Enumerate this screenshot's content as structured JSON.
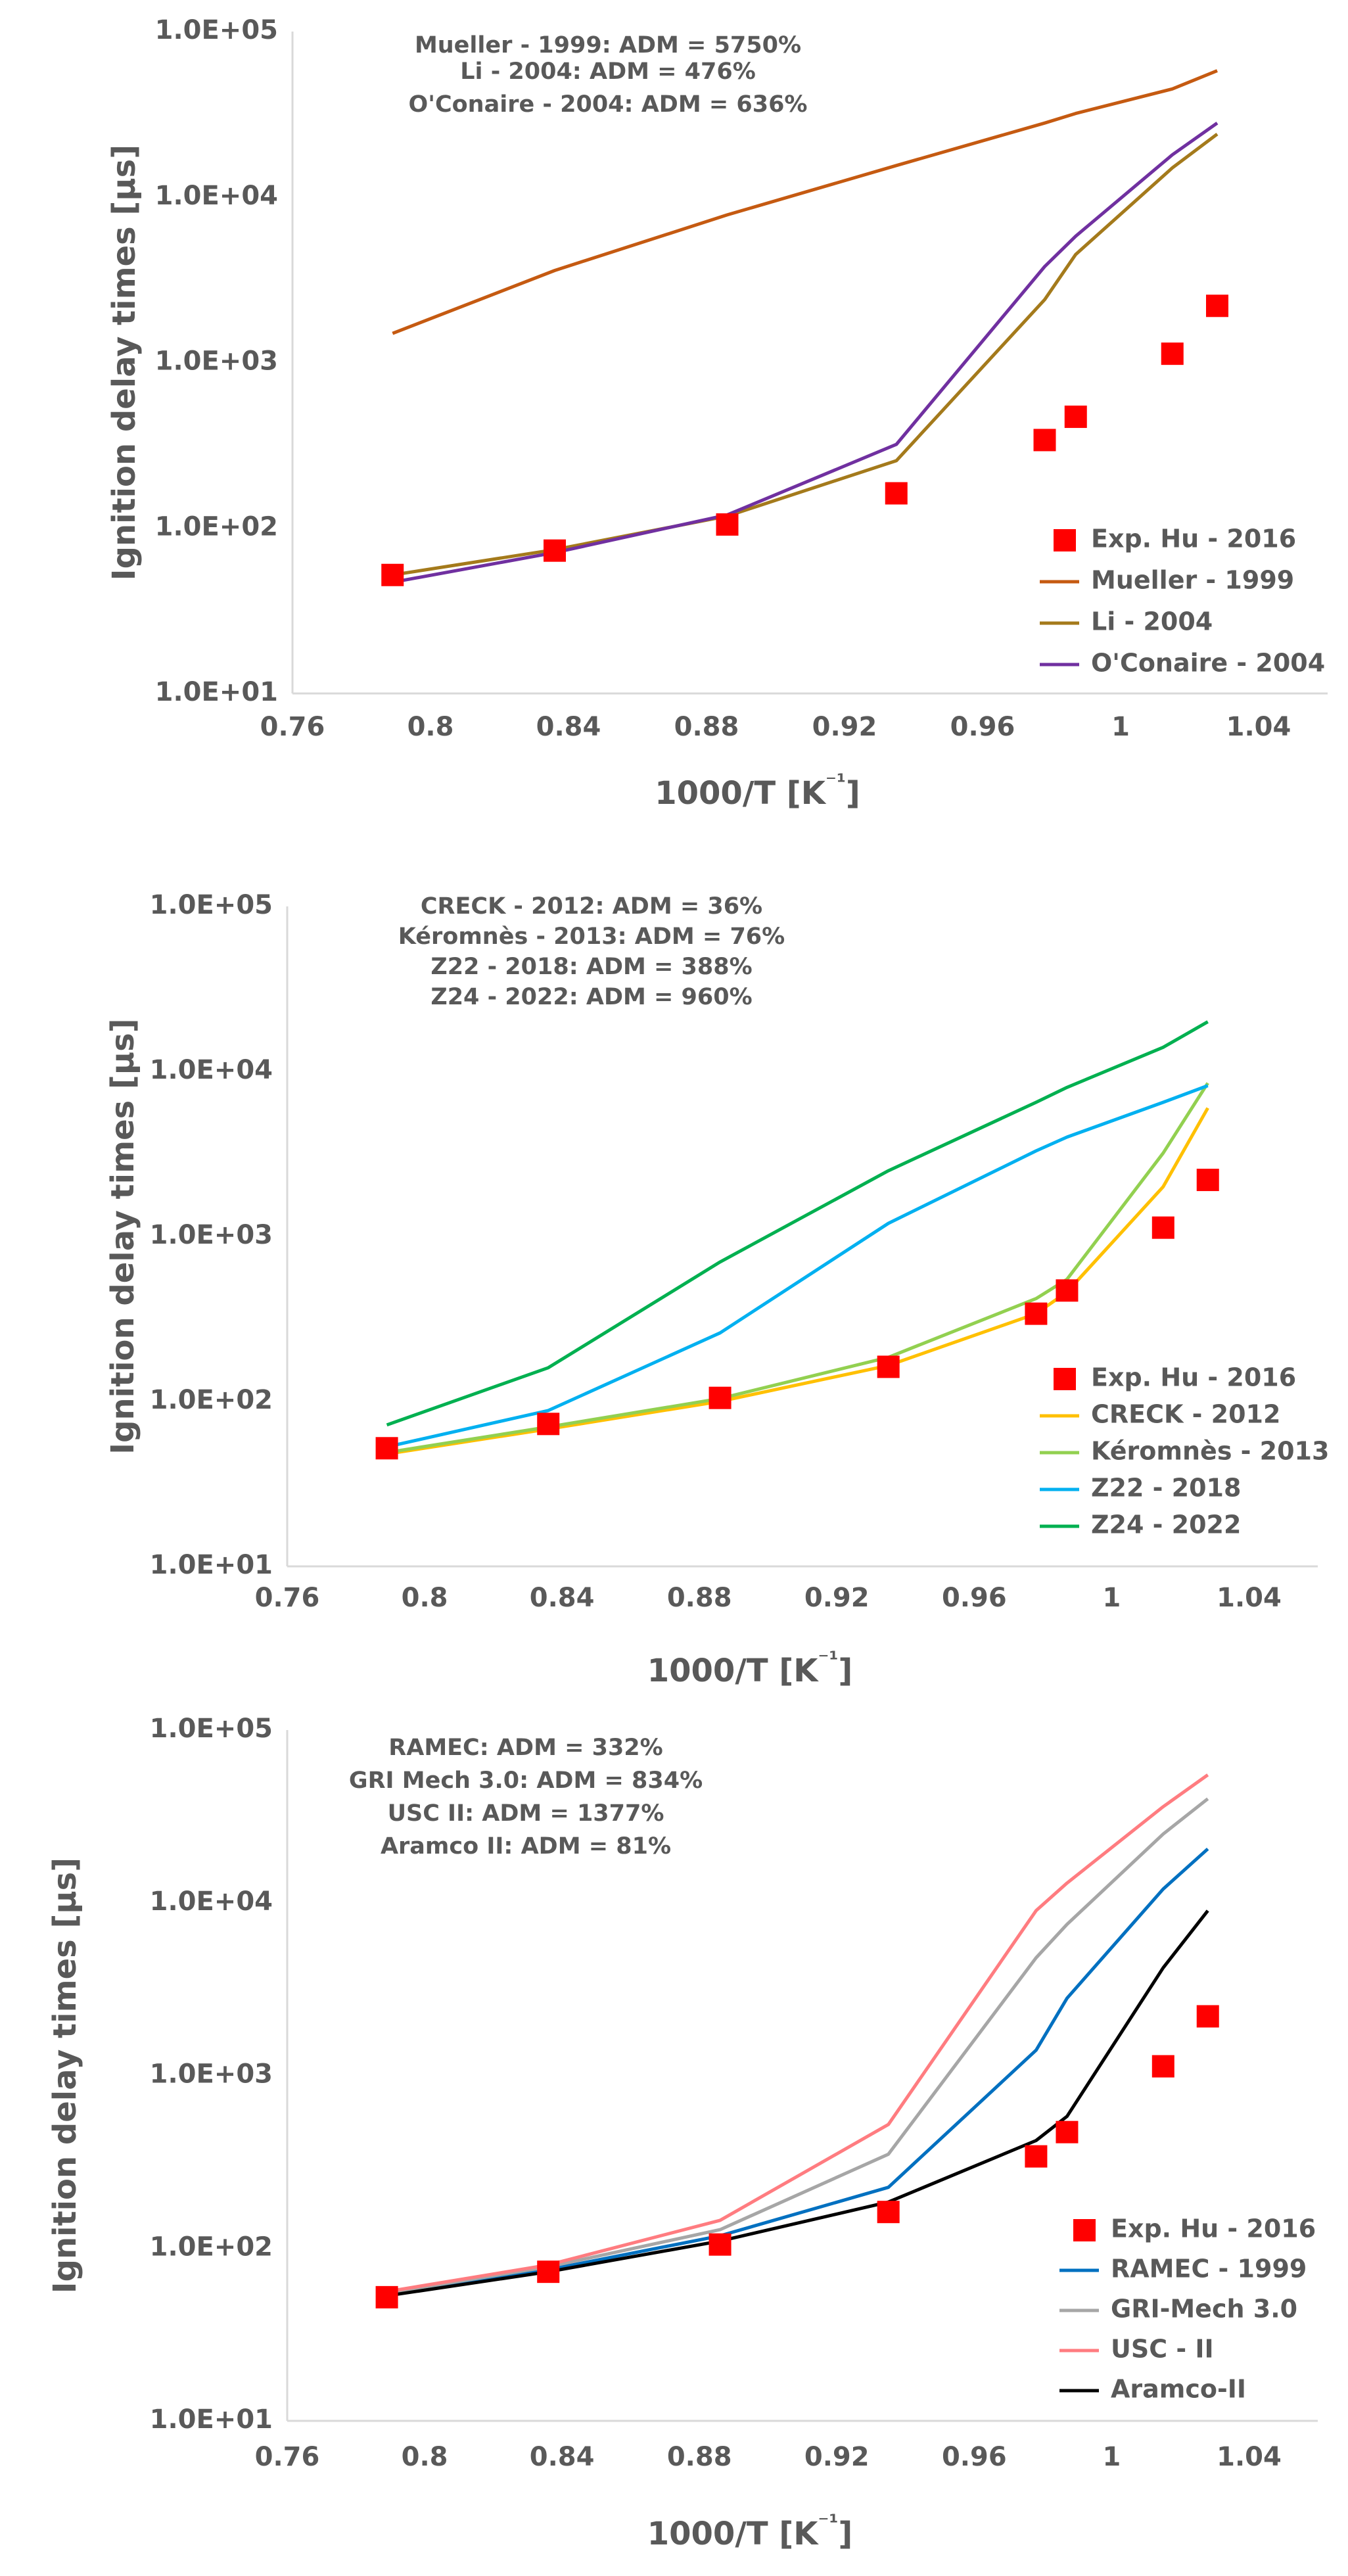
{
  "chart_data": [
    {
      "type": "line",
      "xlabel": "1000/T [K⁻¹]",
      "ylabel": "Ignition delay times [µs]",
      "xlim": [
        0.76,
        1.06
      ],
      "ylim": [
        10,
        100000
      ],
      "y_scale": "log",
      "grid": false,
      "legend_position": "bottom-right",
      "xticks": [
        "0.76",
        "0.8",
        "0.84",
        "0.88",
        "0.92",
        "0.96",
        "1",
        "1.04"
      ],
      "yticks": [
        "1.0E+01",
        "1.0E+02",
        "1.0E+03",
        "1.0E+04",
        "1.0E+05"
      ],
      "annotations": [
        "Mueller - 1999: ADM = 5750%",
        "Li - 2004: ADM = 476%",
        "O'Conaire - 2004: ADM = 636%"
      ],
      "x": [
        0.789,
        0.836,
        0.886,
        0.935,
        0.978,
        0.987,
        1.015,
        1.028
      ],
      "series": [
        {
          "name": "Mueller - 1999",
          "color": "#c55a11",
          "values": [
            1500,
            3600,
            7800,
            15500,
            28000,
            32000,
            45000,
            58000
          ]
        },
        {
          "name": "Li - 2004",
          "color": "#a47a1b",
          "values": [
            52,
            74,
            118,
            255,
            2400,
            4500,
            15000,
            24000
          ]
        },
        {
          "name": "O'Conaire - 2004",
          "color": "#7030a0",
          "values": [
            47,
            71,
            120,
            320,
            3800,
            5800,
            18000,
            28000
          ]
        }
      ],
      "scatter": {
        "name": "Exp. Hu - 2016",
        "color": "#ff0000",
        "x": [
          0.789,
          0.836,
          0.886,
          0.935,
          0.978,
          0.987,
          1.015,
          1.028
        ],
        "values": [
          52,
          73,
          105,
          162,
          340,
          470,
          1130,
          2200
        ]
      }
    },
    {
      "type": "line",
      "xlabel": "1000/T [K⁻¹]",
      "ylabel": "Ignition delay times [µs]",
      "xlim": [
        0.76,
        1.06
      ],
      "ylim": [
        10,
        100000
      ],
      "y_scale": "log",
      "grid": false,
      "legend_position": "bottom-right",
      "xticks": [
        "0.76",
        "0.8",
        "0.84",
        "0.88",
        "0.92",
        "0.96",
        "1",
        "1.04"
      ],
      "yticks": [
        "1.0E+01",
        "1.0E+02",
        "1.0E+03",
        "1.0E+04",
        "1.0E+05"
      ],
      "annotations": [
        "CRECK - 2012: ADM = 36%",
        "Kéromnès - 2013: ADM = 76%",
        "Z22 - 2018: ADM = 388%",
        "Z24 - 2022: ADM = 960%"
      ],
      "x": [
        0.789,
        0.836,
        0.886,
        0.935,
        0.978,
        0.987,
        1.015,
        1.028
      ],
      "series": [
        {
          "name": "CRECK - 2012",
          "color": "#ffc000",
          "values": [
            48,
            68,
            100,
            165,
            340,
            460,
            2000,
            6000
          ]
        },
        {
          "name": "Kéromnès - 2013",
          "color": "#92d050",
          "values": [
            49,
            70,
            104,
            185,
            420,
            550,
            3200,
            8500
          ]
        },
        {
          "name": "Z22 - 2018",
          "color": "#00b0f0",
          "values": [
            53,
            88,
            260,
            1200,
            3300,
            4000,
            6500,
            8200
          ]
        },
        {
          "name": "Z24 - 2022",
          "color": "#00b050",
          "values": [
            72,
            160,
            700,
            2500,
            6500,
            8000,
            14000,
            20000
          ]
        }
      ],
      "scatter": {
        "name": "Exp. Hu - 2016",
        "color": "#ff0000",
        "x": [
          0.789,
          0.836,
          0.886,
          0.935,
          0.978,
          0.987,
          1.015,
          1.028
        ],
        "values": [
          52,
          73,
          105,
          162,
          340,
          470,
          1130,
          2200
        ]
      }
    },
    {
      "type": "line",
      "xlabel": "1000/T [K⁻¹]",
      "ylabel": "Ignition delay times [µs]",
      "xlim": [
        0.76,
        1.06
      ],
      "ylim": [
        10,
        100000
      ],
      "y_scale": "log",
      "grid": false,
      "legend_position": "bottom-right",
      "xticks": [
        "0.76",
        "0.8",
        "0.84",
        "0.88",
        "0.92",
        "0.96",
        "1",
        "1.04"
      ],
      "yticks": [
        "1.0E+01",
        "1.0E+02",
        "1.0E+03",
        "1.0E+04",
        "1.0E+05"
      ],
      "annotations": [
        "RAMEC: ADM = 332%",
        "GRI Mech 3.0: ADM = 834%",
        "USC II: ADM = 1377%",
        "Aramco II: ADM = 81%"
      ],
      "x": [
        0.789,
        0.836,
        0.886,
        0.935,
        0.978,
        0.987,
        1.015,
        1.028
      ],
      "series": [
        {
          "name": "RAMEC - 1999",
          "color": "#0070c0",
          "values": [
            54,
            75,
            118,
            225,
            1400,
            2800,
            12000,
            20500
          ]
        },
        {
          "name": "GRI-Mech 3.0",
          "color": "#a6a6a6",
          "values": [
            55,
            78,
            128,
            350,
            4800,
            7500,
            25000,
            40000
          ]
        },
        {
          "name": "USC - II",
          "color": "#ff7c80",
          "values": [
            56,
            80,
            145,
            520,
            9000,
            13000,
            36000,
            55000
          ]
        },
        {
          "name": "Aramco-II",
          "color": "#000000",
          "values": [
            53,
            73,
            110,
            185,
            420,
            580,
            4200,
            9000
          ]
        }
      ],
      "scatter": {
        "name": "Exp. Hu - 2016",
        "color": "#ff0000",
        "x": [
          0.789,
          0.836,
          0.886,
          0.935,
          0.978,
          0.987,
          1.015,
          1.028
        ],
        "values": [
          52,
          73,
          105,
          162,
          340,
          470,
          1130,
          2200
        ]
      }
    }
  ]
}
